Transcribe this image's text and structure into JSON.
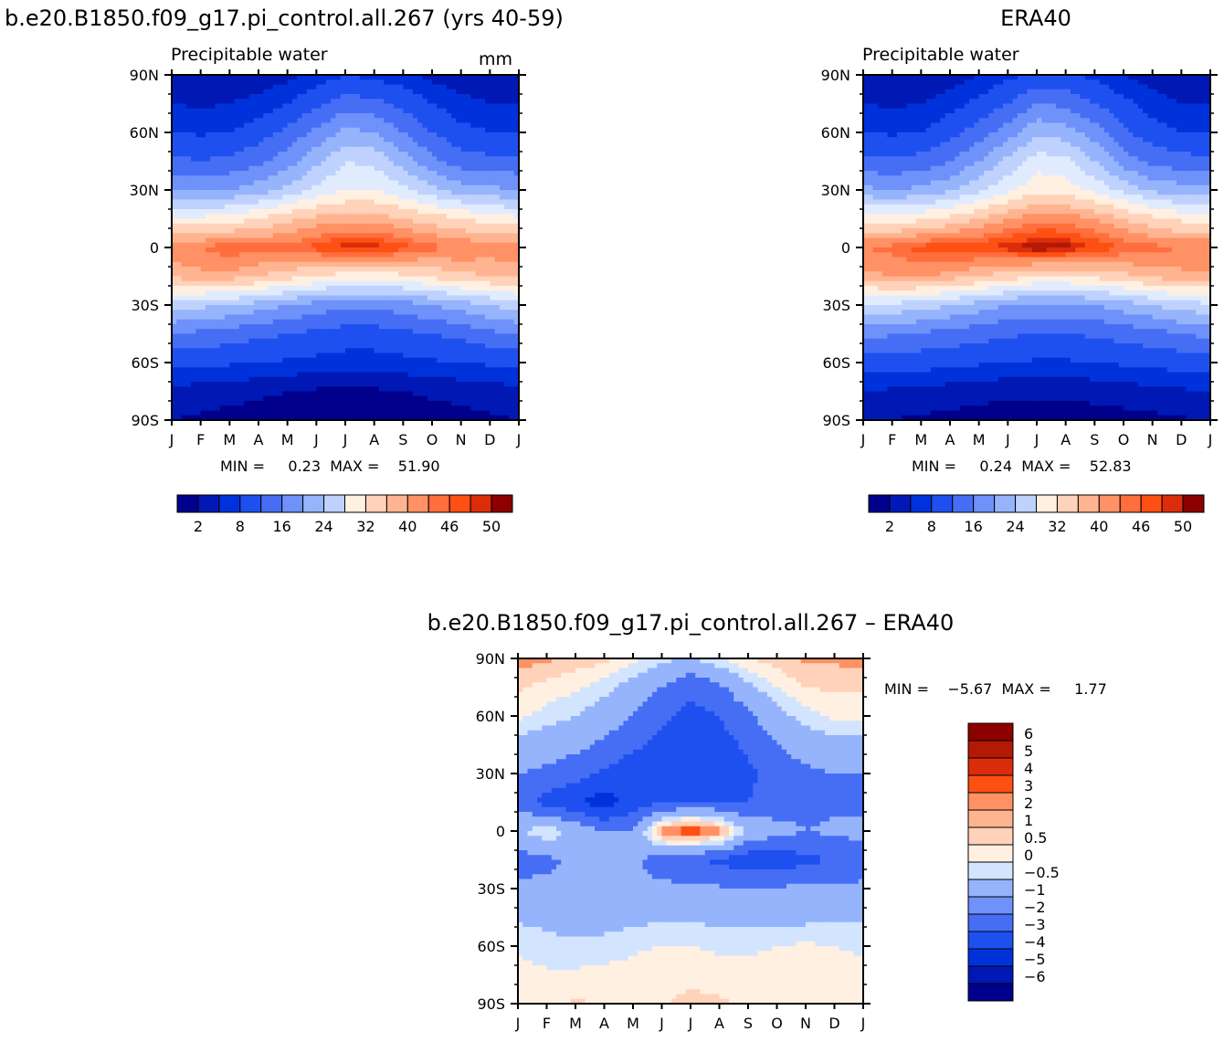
{
  "colors": {
    "abs_scale": [
      "#00008c",
      "#0019b4",
      "#0032dc",
      "#1e50f0",
      "#466ef5",
      "#6e91fa",
      "#96b4fc",
      "#bed2fd",
      "#e1ebfe",
      "#fff0e1",
      "#ffd2b9",
      "#ffb491",
      "#ff9164",
      "#ff6e3c",
      "#ff5014",
      "#dc2d0a",
      "#b41905",
      "#8c0000"
    ],
    "diff_scale": [
      "#00008c",
      "#0019b4",
      "#0032dc",
      "#1e50f0",
      "#466ef5",
      "#96b4fc",
      "#d2e4fe",
      "#fff0e1",
      "#ffd2b9",
      "#ff9164",
      "#ff5014",
      "#dc2d0a",
      "#8c0000"
    ]
  },
  "chart_data": [
    {
      "type": "heatmap",
      "title": "b.e20.B1850.f09_g17.pi_control.all.267 (yrs 40-59)",
      "subtitle": "Precipitable water",
      "units": "mm",
      "x_ticks": [
        "J",
        "F",
        "M",
        "A",
        "M",
        "J",
        "J",
        "A",
        "S",
        "O",
        "N",
        "D",
        "J"
      ],
      "y_ticks": [
        "90N",
        "60N",
        "30N",
        "0",
        "30S",
        "60S",
        "90S"
      ],
      "ylim": [
        -90,
        90
      ],
      "stats_label": "MIN =     0.23  MAX =    51.90",
      "min": 0.23,
      "max": 51.9,
      "colorbar_labels": [
        "2",
        "8",
        "16",
        "24",
        "32",
        "40",
        "46",
        "50"
      ],
      "grid_lat": [
        90,
        75,
        60,
        45,
        30,
        15,
        0,
        -15,
        -30,
        -45,
        -60,
        -75,
        -90
      ],
      "grid_values": [
        [
          3.5,
          3,
          3,
          3,
          4,
          6,
          8,
          7,
          6,
          4,
          3,
          3,
          3.5
        ],
        [
          5,
          4.5,
          5,
          6,
          8,
          11,
          14,
          13,
          11,
          8,
          6,
          5,
          5
        ],
        [
          8,
          7.5,
          8,
          10,
          13,
          17,
          21,
          20,
          16,
          12,
          9,
          8,
          8
        ],
        [
          13,
          12,
          13,
          15,
          18,
          23,
          28,
          27,
          22,
          17,
          14,
          13,
          13
        ],
        [
          20,
          19,
          20,
          22,
          25,
          29,
          32,
          32,
          29,
          25,
          22,
          21,
          20
        ],
        [
          33,
          33,
          34,
          36,
          39,
          41,
          42,
          42,
          40,
          38,
          36,
          34,
          33
        ],
        [
          45,
          46,
          48,
          47,
          47,
          49,
          51,
          51,
          49,
          47,
          46,
          45,
          45
        ],
        [
          41,
          42,
          42,
          40,
          38,
          36,
          34,
          34,
          35,
          37,
          39,
          40,
          41
        ],
        [
          26,
          25,
          24,
          22,
          20,
          18,
          17,
          17,
          18,
          20,
          22,
          24,
          26
        ],
        [
          16,
          15,
          14,
          13,
          12,
          11,
          10,
          10,
          11,
          12,
          13,
          15,
          16
        ],
        [
          9,
          9,
          8.5,
          8,
          7.5,
          7,
          6.5,
          6.5,
          7,
          7.5,
          8,
          8.5,
          9
        ],
        [
          4,
          3.5,
          3,
          2.5,
          2,
          1.5,
          1.5,
          1.5,
          2,
          2.5,
          3,
          3.5,
          4
        ],
        [
          2,
          1.5,
          1,
          0.8,
          0.6,
          0.5,
          0.4,
          0.4,
          0.5,
          0.7,
          1,
          1.5,
          2
        ]
      ]
    },
    {
      "type": "heatmap",
      "title": "ERA40",
      "subtitle": "Precipitable water",
      "x_ticks": [
        "J",
        "F",
        "M",
        "A",
        "M",
        "J",
        "J",
        "A",
        "S",
        "O",
        "N",
        "D",
        "J"
      ],
      "y_ticks": [
        "90N",
        "60N",
        "30N",
        "0",
        "30S",
        "60S",
        "90S"
      ],
      "ylim": [
        -90,
        90
      ],
      "stats_label": "MIN =     0.24  MAX =    52.83",
      "min": 0.24,
      "max": 52.83,
      "colorbar_labels": [
        "2",
        "8",
        "16",
        "24",
        "32",
        "40",
        "46",
        "50"
      ],
      "grid_lat": [
        90,
        75,
        60,
        45,
        30,
        15,
        0,
        -15,
        -30,
        -45,
        -60,
        -75,
        -90
      ],
      "grid_values": [
        [
          2.5,
          2.5,
          2.8,
          3.5,
          5,
          7,
          9,
          8.5,
          7,
          5,
          3.5,
          2.8,
          2.5
        ],
        [
          5,
          4.5,
          5,
          6.5,
          9,
          12,
          16,
          15,
          12,
          9,
          6.5,
          5,
          5
        ],
        [
          8,
          7.5,
          8,
          10.5,
          14,
          18,
          23,
          22,
          18,
          13,
          9.5,
          8,
          8
        ],
        [
          13,
          12.5,
          13.5,
          16,
          20,
          25,
          30,
          29,
          24,
          18,
          15,
          13.5,
          13
        ],
        [
          21,
          20,
          21,
          23,
          27,
          31,
          35,
          34,
          31,
          27,
          23,
          22,
          21
        ],
        [
          34,
          34,
          35,
          37,
          40,
          43,
          45,
          45,
          43,
          40,
          37,
          35,
          34
        ],
        [
          46,
          47,
          49,
          50,
          50,
          51,
          52.5,
          52,
          50,
          48,
          47,
          46,
          46
        ],
        [
          42,
          43,
          43,
          42,
          40,
          38,
          36,
          36,
          37,
          39,
          41,
          42,
          42
        ],
        [
          27,
          27,
          26,
          24,
          22,
          20,
          19,
          19,
          20,
          22,
          24,
          26,
          27
        ],
        [
          17,
          16.5,
          15.5,
          14.5,
          13.5,
          12.5,
          12,
          12,
          12.5,
          13.5,
          14.5,
          16,
          17
        ],
        [
          10,
          10,
          9.5,
          9,
          8.5,
          8,
          7.5,
          7.5,
          8,
          8.5,
          9,
          9.5,
          10
        ],
        [
          5,
          4.5,
          4,
          3.5,
          3,
          2.5,
          2.5,
          2.5,
          3,
          3.5,
          4,
          4.5,
          5
        ],
        [
          2.5,
          2,
          1.5,
          1.2,
          0.9,
          0.7,
          0.5,
          0.5,
          0.7,
          0.9,
          1.2,
          1.7,
          2.5
        ]
      ]
    },
    {
      "type": "heatmap",
      "title": "b.e20.B1850.f09_g17.pi_control.all.267 – ERA40",
      "x_ticks": [
        "J",
        "F",
        "M",
        "A",
        "M",
        "J",
        "J",
        "A",
        "S",
        "O",
        "N",
        "D",
        "J"
      ],
      "y_ticks": [
        "90N",
        "60N",
        "30N",
        "0",
        "30S",
        "60S",
        "90S"
      ],
      "ylim": [
        -90,
        90
      ],
      "stats_label": "MIN =    −5.67  MAX =     1.77",
      "min": -5.67,
      "max": 1.77,
      "colorbar_labels": [
        "6",
        "5",
        "4",
        "3",
        "2",
        "1",
        "0.5",
        "0",
        "−0.5",
        "−1",
        "−2",
        "−3",
        "−4",
        "−5",
        "−6"
      ],
      "grid_lat": [
        90,
        75,
        60,
        45,
        30,
        15,
        0,
        -15,
        -30,
        -45,
        -60,
        -75,
        -90
      ],
      "grid_values": [
        [
          0.8,
          0.6,
          0.3,
          0.2,
          -0.3,
          -0.8,
          -1,
          -0.5,
          0,
          0.3,
          0.6,
          0.6,
          0.8
        ],
        [
          0.1,
          -0.2,
          -0.4,
          -0.8,
          -1.3,
          -2,
          -2.8,
          -2.2,
          -1.2,
          -0.5,
          0,
          0.1,
          0.1
        ],
        [
          -0.4,
          -0.7,
          -1,
          -1.4,
          -2,
          -2.8,
          -3.3,
          -3,
          -2.2,
          -1.3,
          -0.7,
          -0.4,
          -0.4
        ],
        [
          -1.3,
          -1.5,
          -1.7,
          -2.2,
          -2.8,
          -3.3,
          -3.6,
          -3.4,
          -2.8,
          -2,
          -1.5,
          -1.3,
          -1.3
        ],
        [
          -2,
          -2.2,
          -2.6,
          -3.2,
          -3.6,
          -3.6,
          -4,
          -3.7,
          -3.2,
          -2.6,
          -2.2,
          -2,
          -2
        ],
        [
          -2.3,
          -3.5,
          -3.8,
          -4.6,
          -3.5,
          -3.2,
          -3,
          -3,
          -3,
          -2.6,
          -2.3,
          -2.2,
          -2.3
        ],
        [
          -1.2,
          -0.4,
          -1.3,
          -2,
          -2,
          0.8,
          1.6,
          0.8,
          -1.2,
          -1.6,
          -2,
          -1.8,
          -1.6
        ],
        [
          -2.5,
          -2.2,
          -1.8,
          -1.6,
          -1.8,
          -2.4,
          -2.9,
          -3.2,
          -3.6,
          -3.7,
          -3.2,
          -3,
          -2.8
        ],
        [
          -1.7,
          -1.8,
          -1.9,
          -2,
          -1.9,
          -1.8,
          -1.8,
          -1.9,
          -2,
          -1.9,
          -1.8,
          -1.8,
          -1.7
        ],
        [
          -1.1,
          -1.2,
          -1.3,
          -1.3,
          -1.2,
          -1.1,
          -1.1,
          -1.2,
          -1.2,
          -1.2,
          -1.2,
          -1.1,
          -1.1
        ],
        [
          -0.6,
          -0.8,
          -0.9,
          -0.8,
          -0.6,
          -0.5,
          -0.5,
          -0.6,
          -0.6,
          -0.5,
          -0.4,
          -0.5,
          -0.6
        ],
        [
          -0.3,
          -0.4,
          -0.4,
          -0.3,
          -0.3,
          -0.2,
          -0.2,
          -0.3,
          -0.3,
          -0.3,
          -0.2,
          -0.3,
          -0.3
        ],
        [
          -0.2,
          -0.2,
          0.1,
          -0.1,
          -0.1,
          -0.1,
          0.2,
          0.1,
          -0.1,
          -0.1,
          -0.1,
          -0.2,
          -0.2
        ]
      ]
    }
  ]
}
